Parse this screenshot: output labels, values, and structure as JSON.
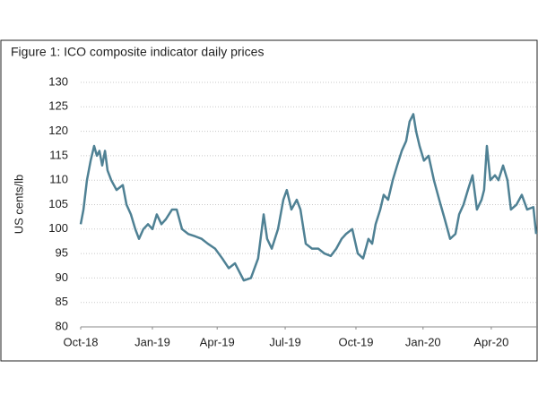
{
  "chart_data": {
    "type": "line",
    "title": "Figure 1: ICO composite indicator daily prices",
    "ylabel": "US cents/lb",
    "ylim": [
      80,
      130
    ],
    "yticks": [
      80,
      85,
      90,
      95,
      100,
      105,
      110,
      115,
      120,
      125,
      130
    ],
    "xlim": [
      0,
      19.77
    ],
    "xticks": [
      {
        "value": 0,
        "label": "Oct-18"
      },
      {
        "value": 3.1,
        "label": "Jan-19"
      },
      {
        "value": 5.9,
        "label": "Apr-19"
      },
      {
        "value": 8.84,
        "label": "Jul-19"
      },
      {
        "value": 11.9,
        "label": "Oct-19"
      },
      {
        "value": 14.8,
        "label": "Jan-20"
      },
      {
        "value": 17.75,
        "label": "Apr-20"
      }
    ],
    "grid": true,
    "x": [
      0,
      0.12,
      0.27,
      0.43,
      0.58,
      0.7,
      0.81,
      0.93,
      1.05,
      1.16,
      1.32,
      1.55,
      1.82,
      1.98,
      2.17,
      2.36,
      2.52,
      2.71,
      2.91,
      3.1,
      3.29,
      3.49,
      3.68,
      3.95,
      4.15,
      4.38,
      4.65,
      4.96,
      5.23,
      5.5,
      5.81,
      6.12,
      6.4,
      6.67,
      7.05,
      7.36,
      7.67,
      7.91,
      8.06,
      8.26,
      8.53,
      8.76,
      8.91,
      9.11,
      9.34,
      9.5,
      9.73,
      10.0,
      10.27,
      10.54,
      10.81,
      11.05,
      11.28,
      11.47,
      11.74,
      11.98,
      12.21,
      12.44,
      12.6,
      12.75,
      12.95,
      13.1,
      13.29,
      13.49,
      13.68,
      13.88,
      14.07,
      14.22,
      14.38,
      14.5,
      14.65,
      14.84,
      15.04,
      15.27,
      15.5,
      15.74,
      15.97,
      16.2,
      16.36,
      16.55,
      16.74,
      16.94,
      17.13,
      17.33,
      17.44,
      17.56,
      17.71,
      17.91,
      18.06,
      18.26,
      18.45,
      18.6,
      18.84,
      19.07,
      19.3,
      19.57,
      19.69
    ],
    "series": [
      {
        "name": "ICO composite indicator",
        "color": "#4f8194",
        "values": [
          101,
          104,
          110,
          114,
          117,
          115,
          116,
          113,
          116,
          112,
          110,
          108,
          109,
          105,
          103,
          100,
          98,
          100,
          101,
          100,
          103,
          101,
          102,
          104,
          104,
          100,
          99,
          98.5,
          98,
          97,
          96,
          94,
          92,
          93,
          89.5,
          90,
          94,
          103,
          98,
          96,
          100,
          106,
          108,
          104,
          106,
          104,
          97,
          96,
          96,
          95,
          94.5,
          96,
          98,
          99,
          100,
          95,
          94,
          98,
          97,
          101,
          104,
          107,
          106,
          110,
          113,
          116,
          118,
          122,
          123.5,
          120,
          117,
          114,
          115,
          110,
          106,
          102,
          98,
          99,
          103,
          105,
          108,
          111,
          104,
          106,
          108,
          117,
          110,
          111,
          110,
          113,
          110,
          104,
          105,
          107,
          104,
          104.5,
          99
        ]
      }
    ]
  }
}
